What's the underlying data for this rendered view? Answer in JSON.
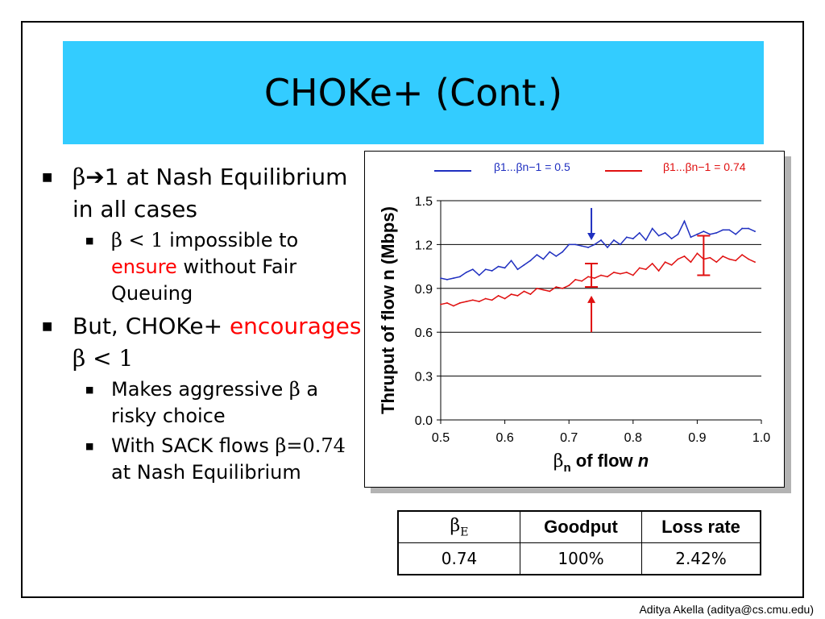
{
  "slide": {
    "title": "CHOKe+ (Cont.)",
    "footer": "Aditya Akella (aditya@cs.cmu.edu)"
  },
  "bullets": {
    "b1": {
      "beta": "β",
      "arrow": "➔",
      "text": "1 at Nash Equilibrium in all cases"
    },
    "b1_sub": {
      "beta_expr": "β < 1",
      "text_a": " impossible to ",
      "red": "ensure",
      "text_b": " without Fair Queuing"
    },
    "b2": {
      "text_a": "But, CHOKe+ ",
      "red": "encourages",
      "beta_expr": " β < 1"
    },
    "b2_sub1": {
      "text_a": "Makes aggressive ",
      "beta": "β",
      "text_b": " a risky choice"
    },
    "b2_sub2": {
      "text_a": "With SACK flows ",
      "beta_expr": "β=0.74",
      "text_b": " at Nash Equilibrium"
    }
  },
  "table": {
    "headers": [
      "βE",
      "Goodput",
      "Loss rate"
    ],
    "row": [
      "0.74",
      "100%",
      "2.42%"
    ]
  },
  "colors": {
    "title_bg": "#33ccff",
    "blue": "#1f2fc0",
    "red": "#e01010"
  },
  "chart_data": {
    "type": "line",
    "ylabel": "Thruput of flow n (Mbps)",
    "xlabel_parts": [
      "β",
      "n",
      " of flow ",
      "n"
    ],
    "xlim": [
      0.5,
      1.0
    ],
    "ylim": [
      0.0,
      1.5
    ],
    "xticks": [
      "0.5",
      "0.6",
      "0.7",
      "0.8",
      "0.9",
      "1.0"
    ],
    "yticks": [
      "0.0",
      "0.3",
      "0.6",
      "0.9",
      "1.2",
      "1.5"
    ],
    "grid": "horizontal",
    "legend_position": "top",
    "series": [
      {
        "name": "β1...βn−1 = 0.5",
        "color": "#1f2fc0",
        "x": [
          0.5,
          0.51,
          0.52,
          0.53,
          0.54,
          0.55,
          0.56,
          0.57,
          0.58,
          0.59,
          0.6,
          0.61,
          0.62,
          0.63,
          0.64,
          0.65,
          0.66,
          0.67,
          0.68,
          0.69,
          0.7,
          0.71,
          0.72,
          0.73,
          0.74,
          0.75,
          0.76,
          0.77,
          0.78,
          0.79,
          0.8,
          0.81,
          0.82,
          0.83,
          0.84,
          0.85,
          0.86,
          0.87,
          0.88,
          0.89,
          0.9,
          0.91,
          0.92,
          0.93,
          0.94,
          0.95,
          0.96,
          0.97,
          0.98,
          0.99
        ],
        "values": [
          0.97,
          0.96,
          0.97,
          0.98,
          1.01,
          1.03,
          0.99,
          1.03,
          1.02,
          1.05,
          1.04,
          1.09,
          1.03,
          1.06,
          1.09,
          1.13,
          1.1,
          1.15,
          1.12,
          1.15,
          1.2,
          1.2,
          1.19,
          1.18,
          1.2,
          1.23,
          1.18,
          1.23,
          1.2,
          1.25,
          1.24,
          1.28,
          1.23,
          1.31,
          1.26,
          1.28,
          1.24,
          1.27,
          1.36,
          1.25,
          1.27,
          1.29,
          1.27,
          1.28,
          1.3,
          1.3,
          1.27,
          1.31,
          1.31,
          1.29
        ]
      },
      {
        "name": "β1...βn−1 = 0.74",
        "color": "#e01010",
        "x": [
          0.5,
          0.51,
          0.52,
          0.53,
          0.54,
          0.55,
          0.56,
          0.57,
          0.58,
          0.59,
          0.6,
          0.61,
          0.62,
          0.63,
          0.64,
          0.65,
          0.66,
          0.67,
          0.68,
          0.69,
          0.7,
          0.71,
          0.72,
          0.73,
          0.74,
          0.75,
          0.76,
          0.77,
          0.78,
          0.79,
          0.8,
          0.81,
          0.82,
          0.83,
          0.84,
          0.85,
          0.86,
          0.87,
          0.88,
          0.89,
          0.9,
          0.91,
          0.92,
          0.93,
          0.94,
          0.95,
          0.96,
          0.97,
          0.98,
          0.99
        ],
        "values": [
          0.79,
          0.8,
          0.78,
          0.8,
          0.81,
          0.82,
          0.81,
          0.83,
          0.82,
          0.85,
          0.83,
          0.86,
          0.85,
          0.88,
          0.86,
          0.9,
          0.89,
          0.88,
          0.91,
          0.9,
          0.92,
          0.96,
          0.95,
          0.98,
          0.97,
          0.99,
          0.98,
          1.01,
          1.0,
          1.01,
          0.99,
          1.04,
          1.03,
          1.07,
          1.02,
          1.08,
          1.06,
          1.1,
          1.12,
          1.08,
          1.14,
          1.1,
          1.11,
          1.08,
          1.12,
          1.1,
          1.09,
          1.13,
          1.1,
          1.08
        ]
      }
    ],
    "annotations": {
      "arrows": [
        {
          "x": 0.735,
          "from": 1.45,
          "to": 1.23,
          "color": "#1f2fc0"
        },
        {
          "x": 0.735,
          "from": 0.6,
          "to": 0.85,
          "color": "#e01010"
        }
      ],
      "error_bars": [
        {
          "x": 0.735,
          "low": 0.91,
          "high": 1.07,
          "color": "#e01010"
        },
        {
          "x": 0.91,
          "low": 0.99,
          "high": 1.26,
          "color": "#e01010"
        }
      ]
    }
  }
}
